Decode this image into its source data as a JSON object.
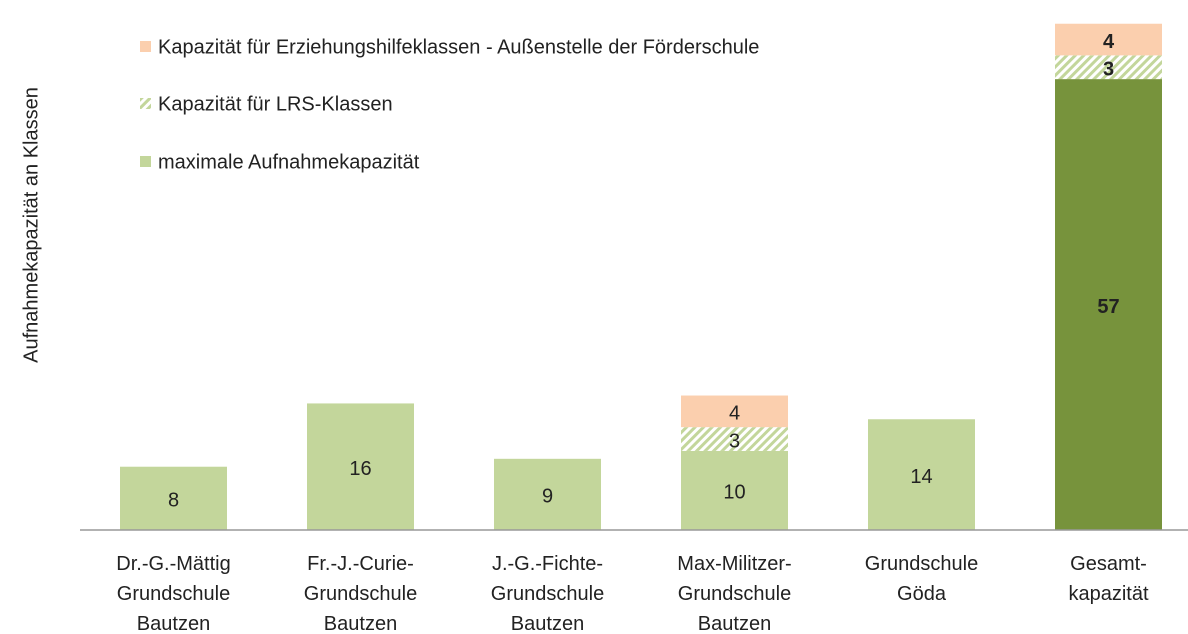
{
  "chart_data": {
    "type": "stacked_bar",
    "y_label": "Aufnahmekapazität  an Klassen",
    "categories": [
      "Dr.-G.-Mättig\nGrundschule\nBautzen",
      "Fr.-J.-Curie-\nGrundschule\nBautzen",
      "J.-G.-Fichte-\nGrundschule\nBautzen",
      "Max-Militzer-\nGrundschule\nBautzen",
      "Grundschule\nGöda",
      "Gesamt-\nkapazität"
    ],
    "series": [
      {
        "name": "maximale Aufnahmekapazität",
        "color": "#c3d69b",
        "colors": [
          "#c3d69b",
          "#c3d69b",
          "#c3d69b",
          "#c3d69b",
          "#c3d69b",
          "#77933c"
        ],
        "values": [
          8,
          16,
          9,
          10,
          14,
          57
        ]
      },
      {
        "name": "Kapazität für LRS-Klassen",
        "color": "#c3d69b",
        "pattern": "hatch",
        "values": [
          null,
          null,
          null,
          3,
          null,
          3
        ]
      },
      {
        "name": "Kapazität für Erziehungshilfeklassen - Außenstelle der Förderschule",
        "color": "#fbcfae",
        "values": [
          null,
          null,
          null,
          4,
          null,
          4
        ]
      }
    ],
    "ylim": [
      0,
      67
    ],
    "legend": "top-left"
  }
}
